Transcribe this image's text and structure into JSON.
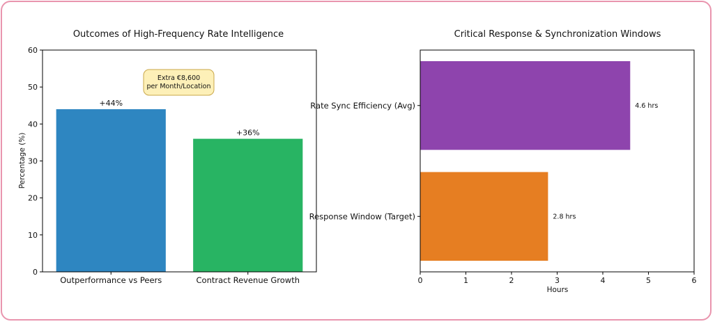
{
  "chart_data": [
    {
      "type": "bar",
      "title": "Outcomes of High-Frequency Rate Intelligence",
      "xlabel": "",
      "ylabel": "Percentage (%)",
      "ylim": [
        0,
        60
      ],
      "yticks": [
        0,
        10,
        20,
        30,
        40,
        50,
        60
      ],
      "grid": false,
      "categories": [
        "Outperformance vs Peers",
        "Contract Revenue Growth"
      ],
      "values": [
        44,
        36
      ],
      "value_labels": [
        "+44%",
        "+36%"
      ],
      "colors": [
        "#2e86c1",
        "#28b463"
      ],
      "annotation": {
        "lines": [
          "Extra €8,600",
          "per Month/Location"
        ],
        "fill": "#fdf0b8",
        "border": "#c9a74a"
      }
    },
    {
      "type": "bar",
      "orientation": "horizontal",
      "title": "Critical Response & Synchronization Windows",
      "xlabel": "Hours",
      "ylabel": "",
      "xlim": [
        0,
        6
      ],
      "xticks": [
        0,
        1,
        2,
        3,
        4,
        5,
        6
      ],
      "grid": false,
      "categories": [
        "Rate Sync Efficiency (Avg)",
        "Response Window (Target)"
      ],
      "values": [
        4.6,
        2.8
      ],
      "value_labels": [
        "4.6 hrs",
        "2.8 hrs"
      ],
      "colors": [
        "#8e44ad",
        "#e67e22"
      ]
    }
  ]
}
